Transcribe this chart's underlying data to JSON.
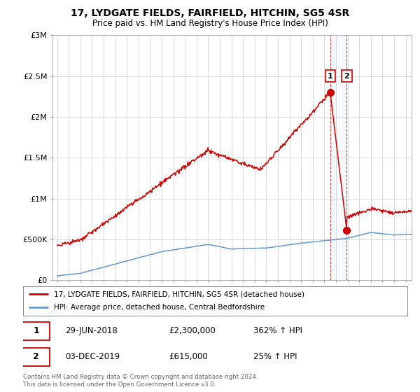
{
  "title": "17, LYDGATE FIELDS, FAIRFIELD, HITCHIN, SG5 4SR",
  "subtitle": "Price paid vs. HM Land Registry's House Price Index (HPI)",
  "legend_label_1": "17, LYDGATE FIELDS, FAIRFIELD, HITCHIN, SG5 4SR (detached house)",
  "legend_label_2": "HPI: Average price, detached house, Central Bedfordshire",
  "t1_label": "1",
  "t1_date": "29-JUN-2018",
  "t1_price": "£2,300,000",
  "t1_pct": "362% ↑ HPI",
  "t1_year": 2018.5,
  "t1_val": 2300000,
  "t2_label": "2",
  "t2_date": "03-DEC-2019",
  "t2_price": "£615,000",
  "t2_pct": "25% ↑ HPI",
  "t2_year": 2019.92,
  "t2_val": 615000,
  "footnote_line1": "Contains HM Land Registry data © Crown copyright and database right 2024.",
  "footnote_line2": "This data is licensed under the Open Government Licence v3.0.",
  "red_color": "#cc0000",
  "blue_color": "#6699cc",
  "grid_color": "#cccccc",
  "ylim_max": 3000000,
  "xlim_start": 1994.6,
  "xlim_end": 2025.5,
  "yticks": [
    0,
    500000,
    1000000,
    1500000,
    2000000,
    2500000,
    3000000
  ],
  "ytick_labels": [
    "£0",
    "£500K",
    "£1M",
    "£1.5M",
    "£2M",
    "£2.5M",
    "£3M"
  ],
  "xticks": [
    1995,
    1996,
    1997,
    1998,
    1999,
    2000,
    2001,
    2002,
    2003,
    2004,
    2005,
    2006,
    2007,
    2008,
    2009,
    2010,
    2011,
    2012,
    2013,
    2014,
    2015,
    2016,
    2017,
    2018,
    2019,
    2020,
    2021,
    2022,
    2023,
    2024,
    2025
  ]
}
